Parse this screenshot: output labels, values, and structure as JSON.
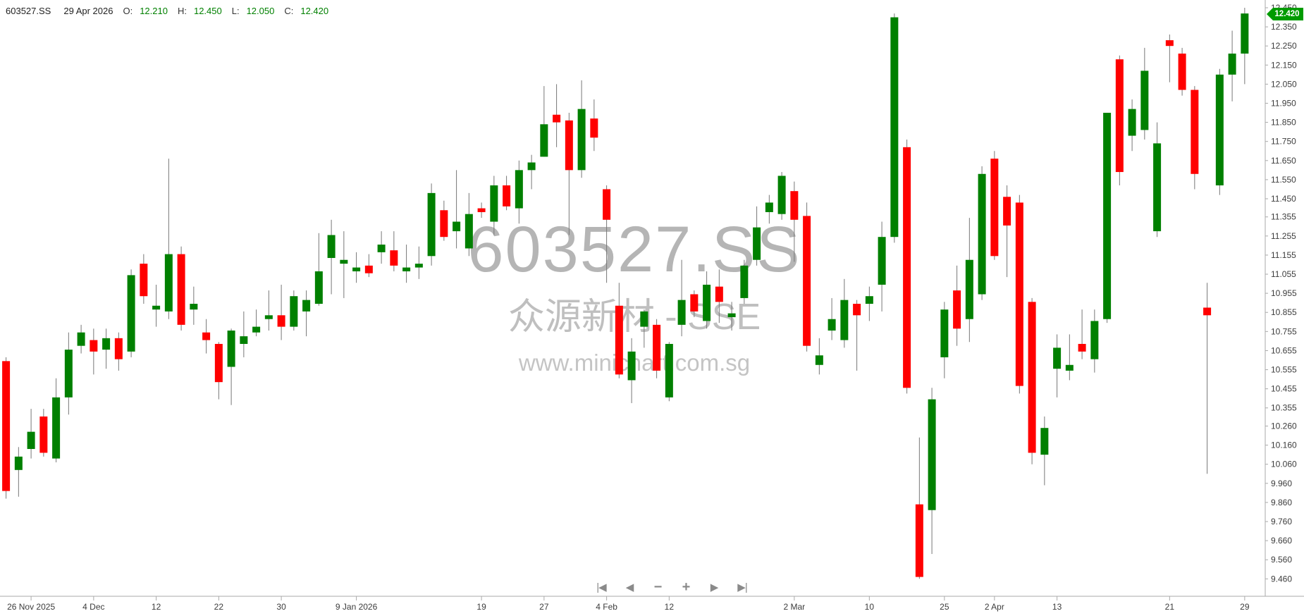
{
  "header": {
    "symbol": "603527.SS",
    "date": "29 Apr 2026",
    "fields": [
      {
        "label": "O:",
        "value": "12.210"
      },
      {
        "label": "H:",
        "value": "12.450"
      },
      {
        "label": "L:",
        "value": "12.050"
      },
      {
        "label": "C:",
        "value": "12.420"
      }
    ]
  },
  "watermark": {
    "symbol_line": "603527.SS",
    "name_line": "众源新材 - SSE",
    "url_line": "www.minichart.com.sg"
  },
  "price_badge": {
    "value": "12.420"
  },
  "controls": [
    {
      "name": "skip-to-start-button",
      "glyph": "|◀"
    },
    {
      "name": "step-back-button",
      "glyph": "◀"
    },
    {
      "name": "zoom-out-button",
      "glyph": "−"
    },
    {
      "name": "zoom-in-button",
      "glyph": "+"
    },
    {
      "name": "step-forward-button",
      "glyph": "▶"
    },
    {
      "name": "skip-to-end-button",
      "glyph": "▶|"
    }
  ],
  "colors": {
    "up": "#008000",
    "down": "#ff0000",
    "wick": "#777777",
    "axis_line": "#aaaaaa",
    "axis_text": "#3c3c3c",
    "badge_bg": "#009b00",
    "badge_text": "#ffffff",
    "header_value": "#008000",
    "watermark": "#bcbcbc",
    "controls": "#8a8a8a"
  },
  "chart_data": {
    "type": "candlestick",
    "title": "603527.SS",
    "subtitle": "众源新材 - SSE",
    "legend_position": "none",
    "grid": false,
    "y_axis": {
      "side": "right",
      "min": 9.46,
      "max": 12.45,
      "labels": [
        "12.450",
        "12.350",
        "12.250",
        "12.150",
        "12.050",
        "11.950",
        "11.850",
        "11.750",
        "11.650",
        "11.550",
        "11.450",
        "11.355",
        "11.255",
        "11.155",
        "11.055",
        "10.955",
        "10.855",
        "10.755",
        "10.655",
        "10.555",
        "10.455",
        "10.355",
        "10.260",
        "10.160",
        "10.060",
        "9.960",
        "9.860",
        "9.760",
        "9.660",
        "9.560",
        "9.460"
      ]
    },
    "x_axis": {
      "ticks": [
        {
          "label": "26 Nov 2025",
          "index": 2
        },
        {
          "label": "4 Dec",
          "index": 7
        },
        {
          "label": "12",
          "index": 12
        },
        {
          "label": "22",
          "index": 17
        },
        {
          "label": "30",
          "index": 22
        },
        {
          "label": "9 Jan 2026",
          "index": 28
        },
        {
          "label": "19",
          "index": 38
        },
        {
          "label": "27",
          "index": 43
        },
        {
          "label": "4 Feb",
          "index": 48
        },
        {
          "label": "12",
          "index": 53
        },
        {
          "label": "2 Mar",
          "index": 63
        },
        {
          "label": "10",
          "index": 69
        },
        {
          "label": "25",
          "index": 75
        },
        {
          "label": "2 Apr",
          "index": 79
        },
        {
          "label": "13",
          "index": 84
        },
        {
          "label": "21",
          "index": 93
        },
        {
          "label": "29",
          "index": 99
        }
      ]
    },
    "last_price": 12.42,
    "candles_format": [
      "open",
      "high",
      "low",
      "close"
    ],
    "candles": [
      [
        10.6,
        10.62,
        9.88,
        9.92
      ],
      [
        10.03,
        10.15,
        9.89,
        10.1
      ],
      [
        10.14,
        10.35,
        10.09,
        10.23
      ],
      [
        10.31,
        10.35,
        10.1,
        10.12
      ],
      [
        10.09,
        10.51,
        10.07,
        10.41
      ],
      [
        10.41,
        10.75,
        10.32,
        10.66
      ],
      [
        10.68,
        10.79,
        10.64,
        10.75
      ],
      [
        10.71,
        10.77,
        10.53,
        10.65
      ],
      [
        10.66,
        10.77,
        10.56,
        10.72
      ],
      [
        10.72,
        10.75,
        10.55,
        10.61
      ],
      [
        10.65,
        11.08,
        10.62,
        11.05
      ],
      [
        11.11,
        11.16,
        10.9,
        10.94
      ],
      [
        10.87,
        11.0,
        10.78,
        10.89
      ],
      [
        10.86,
        11.66,
        10.82,
        11.16
      ],
      [
        11.16,
        11.2,
        10.76,
        10.79
      ],
      [
        10.87,
        10.99,
        10.79,
        10.9
      ],
      [
        10.75,
        10.82,
        10.64,
        10.71
      ],
      [
        10.69,
        10.7,
        10.4,
        10.49
      ],
      [
        10.57,
        10.77,
        10.37,
        10.76
      ],
      [
        10.69,
        10.86,
        10.62,
        10.73
      ],
      [
        10.75,
        10.87,
        10.73,
        10.78
      ],
      [
        10.82,
        10.97,
        10.76,
        10.84
      ],
      [
        10.84,
        11.0,
        10.71,
        10.78
      ],
      [
        10.78,
        10.97,
        10.76,
        10.94
      ],
      [
        10.86,
        10.97,
        10.73,
        10.92
      ],
      [
        10.9,
        11.27,
        10.89,
        11.07
      ],
      [
        11.14,
        11.34,
        10.95,
        11.26
      ],
      [
        11.11,
        11.28,
        10.93,
        11.13
      ],
      [
        11.07,
        11.17,
        11.01,
        11.09
      ],
      [
        11.1,
        11.16,
        11.04,
        11.06
      ],
      [
        11.17,
        11.28,
        11.11,
        11.21
      ],
      [
        11.18,
        11.28,
        11.07,
        11.1
      ],
      [
        11.07,
        11.21,
        11.01,
        11.09
      ],
      [
        11.09,
        11.2,
        11.03,
        11.11
      ],
      [
        11.15,
        11.53,
        11.1,
        11.48
      ],
      [
        11.39,
        11.44,
        11.23,
        11.25
      ],
      [
        11.28,
        11.6,
        11.19,
        11.33
      ],
      [
        11.19,
        11.48,
        11.15,
        11.37
      ],
      [
        11.4,
        11.43,
        11.35,
        11.38
      ],
      [
        11.33,
        11.57,
        11.26,
        11.52
      ],
      [
        11.52,
        11.57,
        11.39,
        11.41
      ],
      [
        11.4,
        11.65,
        11.32,
        11.6
      ],
      [
        11.6,
        11.68,
        11.5,
        11.64
      ],
      [
        11.67,
        12.04,
        11.67,
        11.84
      ],
      [
        11.89,
        12.05,
        11.72,
        11.85
      ],
      [
        11.86,
        11.9,
        11.26,
        11.6
      ],
      [
        11.6,
        12.07,
        11.56,
        11.92
      ],
      [
        11.87,
        11.97,
        11.7,
        11.77
      ],
      [
        11.5,
        11.52,
        11.01,
        11.34
      ],
      [
        10.89,
        11.01,
        10.51,
        10.53
      ],
      [
        10.5,
        10.72,
        10.38,
        10.65
      ],
      [
        10.78,
        10.87,
        10.67,
        10.86
      ],
      [
        10.79,
        10.82,
        10.51,
        10.55
      ],
      [
        10.41,
        10.7,
        10.39,
        10.69
      ],
      [
        10.79,
        11.13,
        10.73,
        10.92
      ],
      [
        10.95,
        10.97,
        10.83,
        10.86
      ],
      [
        10.81,
        11.07,
        10.77,
        11.0
      ],
      [
        10.99,
        11.08,
        10.8,
        10.91
      ],
      [
        10.83,
        10.91,
        10.76,
        10.85
      ],
      [
        10.93,
        11.13,
        10.9,
        11.1
      ],
      [
        11.13,
        11.41,
        11.1,
        11.3
      ],
      [
        11.38,
        11.47,
        11.32,
        11.43
      ],
      [
        11.37,
        11.59,
        11.34,
        11.57
      ],
      [
        11.49,
        11.54,
        11.12,
        11.34
      ],
      [
        11.36,
        11.43,
        10.65,
        10.68
      ],
      [
        10.58,
        10.72,
        10.53,
        10.63
      ],
      [
        10.76,
        10.93,
        10.71,
        10.82
      ],
      [
        10.71,
        11.03,
        10.67,
        10.92
      ],
      [
        10.9,
        10.92,
        10.55,
        10.84
      ],
      [
        10.9,
        10.99,
        10.81,
        10.94
      ],
      [
        11.0,
        11.33,
        10.86,
        11.25
      ],
      [
        11.25,
        12.42,
        11.22,
        12.4
      ],
      [
        11.72,
        11.76,
        10.43,
        10.46
      ],
      [
        9.85,
        10.2,
        9.46,
        9.47
      ],
      [
        9.82,
        10.46,
        9.59,
        10.4
      ],
      [
        10.62,
        10.91,
        10.51,
        10.87
      ],
      [
        10.97,
        11.1,
        10.68,
        10.77
      ],
      [
        10.82,
        11.35,
        10.7,
        11.13
      ],
      [
        10.95,
        11.62,
        10.92,
        11.58
      ],
      [
        11.66,
        11.7,
        11.13,
        11.15
      ],
      [
        11.46,
        11.52,
        11.04,
        11.31
      ],
      [
        11.43,
        11.47,
        10.43,
        10.47
      ],
      [
        10.91,
        10.93,
        10.06,
        10.12
      ],
      [
        10.11,
        10.31,
        9.95,
        10.25
      ],
      [
        10.56,
        10.74,
        10.41,
        10.67
      ],
      [
        10.55,
        10.74,
        10.5,
        10.58
      ],
      [
        10.69,
        10.87,
        10.61,
        10.65
      ],
      [
        10.61,
        10.87,
        10.54,
        10.81
      ],
      [
        10.82,
        11.9,
        10.8,
        11.9
      ],
      [
        12.18,
        12.2,
        11.52,
        11.59
      ],
      [
        11.78,
        11.97,
        11.7,
        11.92
      ],
      [
        11.81,
        12.24,
        11.76,
        12.12
      ],
      [
        11.28,
        11.85,
        11.25,
        11.74
      ],
      [
        12.28,
        12.31,
        12.06,
        12.25
      ],
      [
        12.21,
        12.24,
        11.99,
        12.02
      ],
      [
        12.02,
        12.04,
        11.5,
        11.58
      ],
      [
        10.88,
        11.01,
        10.01,
        10.84
      ],
      [
        11.52,
        12.13,
        11.47,
        12.1
      ],
      [
        12.1,
        12.33,
        11.96,
        12.21
      ],
      [
        12.21,
        12.45,
        12.05,
        12.42
      ]
    ]
  }
}
